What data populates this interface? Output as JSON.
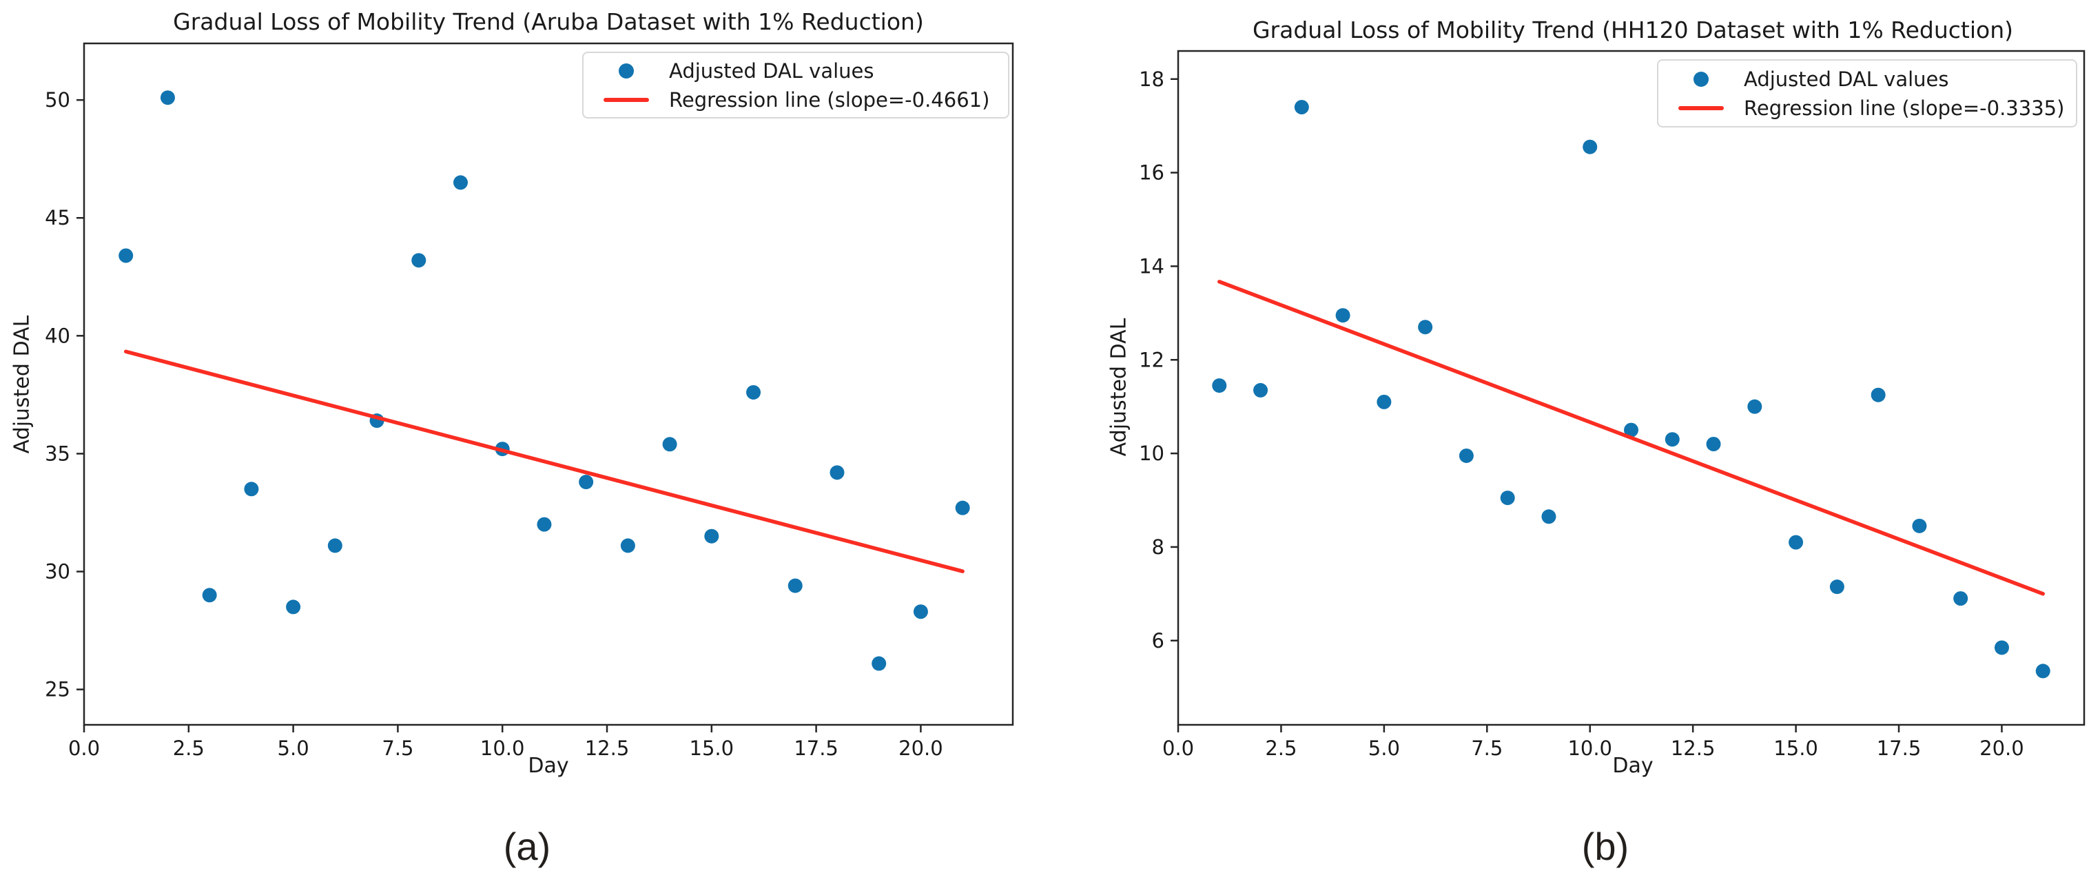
{
  "figure": {
    "background": "#ffffff",
    "text_color": "#1a1a1a",
    "spine_color": "#262626"
  },
  "chart_data": [
    {
      "type": "scatter",
      "panel_label": "(a)",
      "title": "Gradual Loss of Mobility Trend (Aruba Dataset with 1% Reduction)",
      "xlabel": "Day",
      "ylabel": "Adjusted DAL",
      "legend": [
        "Adjusted DAL values",
        "Regression line (slope=-0.4661)"
      ],
      "legend_position": "upper right",
      "grid": false,
      "colors": {
        "points": "#1174b0",
        "regression_line": "#fa2d22"
      },
      "x": [
        1,
        2,
        3,
        4,
        5,
        6,
        7,
        8,
        9,
        10,
        11,
        12,
        13,
        14,
        15,
        16,
        17,
        18,
        19,
        20,
        21
      ],
      "y": [
        43.4,
        50.1,
        29.0,
        33.5,
        28.5,
        31.1,
        36.4,
        43.2,
        46.5,
        35.2,
        32.0,
        33.8,
        31.1,
        35.4,
        31.5,
        37.6,
        29.4,
        34.2,
        26.1,
        28.3,
        32.7
      ],
      "regression": {
        "slope": -0.4661,
        "x": [
          1,
          21
        ],
        "y": [
          39.33,
          30.01
        ]
      },
      "xlim": [
        0,
        22.2
      ],
      "ylim": [
        23.5,
        52.4
      ],
      "xticks": {
        "values": [
          0,
          2.5,
          5,
          7.5,
          10,
          12.5,
          15,
          17.5,
          20
        ],
        "labels": [
          "0.0",
          "2.5",
          "5.0",
          "7.5",
          "10.0",
          "12.5",
          "15.0",
          "17.5",
          "20.0"
        ]
      },
      "yticks": {
        "values": [
          25,
          30,
          35,
          40,
          45,
          50
        ],
        "labels": [
          "25",
          "30",
          "35",
          "40",
          "45",
          "50"
        ]
      }
    },
    {
      "type": "scatter",
      "panel_label": "(b)",
      "title": "Gradual Loss of Mobility Trend (HH120 Dataset with 1% Reduction)",
      "xlabel": "Day",
      "ylabel": "Adjusted DAL",
      "legend": [
        "Adjusted DAL values",
        "Regression line (slope=-0.3335)"
      ],
      "legend_position": "upper right",
      "grid": false,
      "colors": {
        "points": "#1174b0",
        "regression_line": "#fa2d22"
      },
      "x": [
        1,
        2,
        3,
        4,
        5,
        6,
        7,
        8,
        9,
        10,
        11,
        12,
        13,
        14,
        15,
        16,
        17,
        18,
        19,
        20,
        21
      ],
      "y": [
        11.45,
        11.35,
        17.4,
        12.95,
        11.1,
        12.7,
        9.95,
        9.05,
        8.65,
        16.55,
        10.5,
        10.3,
        10.2,
        11.0,
        8.1,
        7.15,
        11.25,
        8.45,
        6.9,
        5.85,
        5.35
      ],
      "regression": {
        "slope": -0.3335,
        "x": [
          1,
          21
        ],
        "y": [
          13.67,
          7.0
        ]
      },
      "xlim": [
        0,
        22.0
      ],
      "ylim": [
        4.2,
        18.6
      ],
      "xticks": {
        "values": [
          0,
          2.5,
          5,
          7.5,
          10,
          12.5,
          15,
          17.5,
          20
        ],
        "labels": [
          "0.0",
          "2.5",
          "5.0",
          "7.5",
          "10.0",
          "12.5",
          "15.0",
          "17.5",
          "20.0"
        ]
      },
      "yticks": {
        "values": [
          6,
          8,
          10,
          12,
          14,
          16,
          18
        ],
        "labels": [
          "6",
          "8",
          "10",
          "12",
          "14",
          "16",
          "18"
        ]
      }
    }
  ]
}
